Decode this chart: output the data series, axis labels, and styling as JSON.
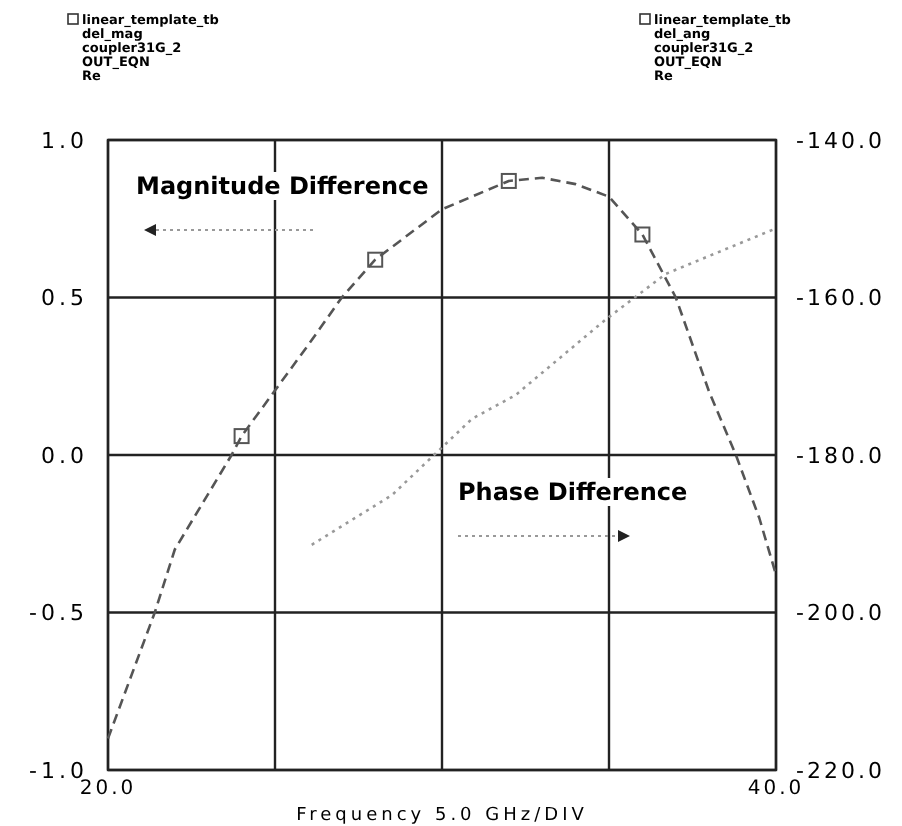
{
  "chart_data": {
    "type": "line",
    "xlabel": "Frequency 5.0 GHz/DIV",
    "annotations": [
      "Magnitude Difference",
      "Phase Difference",
      "linear_template_tb\ndel_mag\ncoupler31G_2\nOUT_EQN\nRe",
      "linear_template_tb\ndel_ang\ncoupler31G_2\nOUT_EQN\nRe"
    ],
    "xlim": [
      20,
      40
    ],
    "xticks": [
      {
        "value": 20,
        "label": "20.0"
      },
      {
        "value": 25,
        "label": null
      },
      {
        "value": 30,
        "label": null
      },
      {
        "value": 35,
        "label": null
      },
      {
        "value": 40,
        "label": "40.0"
      }
    ],
    "ylim": [
      -1,
      1
    ],
    "yticks": [
      {
        "value": -1,
        "label": "-1.0"
      },
      {
        "value": -0.5,
        "label": "-0.5"
      },
      {
        "value": 0,
        "label": "0.0"
      },
      {
        "value": 0.5,
        "label": "0.5"
      },
      {
        "value": 1,
        "label": "1.0"
      }
    ],
    "y2lim": [
      -220,
      -140
    ],
    "y2ticks": [
      {
        "value": -220,
        "label": "-220.0"
      },
      {
        "value": -200,
        "label": "-200.0"
      },
      {
        "value": -180,
        "label": "-180.0"
      },
      {
        "value": -160,
        "label": "-160.0"
      },
      {
        "value": -140,
        "label": "-140.0"
      }
    ],
    "grid": true,
    "series": [
      {
        "color": "#555555",
        "line_style": "dashed",
        "x": [
          20,
          21.4,
          22,
          23.7,
          24,
          26,
          27,
          28,
          30,
          32,
          33,
          34,
          35,
          36,
          37,
          38,
          38.8,
          39.5,
          40
        ],
        "values": [
          -0.9,
          -0.5,
          -0.3,
          0,
          0.06,
          0.35,
          0.5,
          0.62,
          0.78,
          0.87,
          0.88,
          0.86,
          0.82,
          0.7,
          0.5,
          0.2,
          0,
          -0.2,
          -0.38
        ]
      },
      {
        "type": "scatter",
        "marker": "square",
        "color": "#555555",
        "x": [
          24,
          28,
          32,
          36
        ],
        "values": [
          0.06,
          0.62,
          0.87,
          0.7
        ]
      },
      {
        "color": "#999999",
        "line_style": "dotted",
        "axis": "y2",
        "x": [
          26.1,
          28.5,
          30.9,
          32.2,
          34.9,
          36.7,
          39.9
        ],
        "values": [
          -191.4,
          -185.1,
          -175.4,
          -172.4,
          -162.8,
          -157,
          -151.4
        ]
      }
    ]
  }
}
